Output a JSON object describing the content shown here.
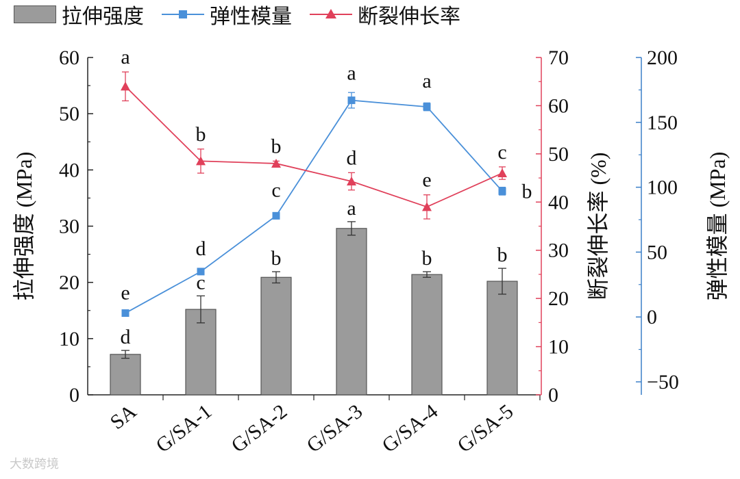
{
  "legend": {
    "bar_label": "拉伸强度",
    "modulus_label": "弹性模量",
    "elong_label": "断裂伸长率"
  },
  "watermark": "大数跨境",
  "colors": {
    "bar": "#9b9b9b",
    "bar_edge": "#555555",
    "modulus": "#4a90d9",
    "elongation": "#e0405a",
    "right_axis_red": "#e0405a",
    "right_axis_blue": "#3a7fc8"
  },
  "chart_data": {
    "type": "bar",
    "categories": [
      "SA",
      "G/SA-1",
      "G/SA-2",
      "G/SA-3",
      "G/SA-4",
      "G/SA-5"
    ],
    "series": [
      {
        "name": "拉伸强度",
        "type": "bar",
        "axis": "left",
        "values": [
          7.2,
          15.2,
          20.9,
          29.6,
          21.4,
          20.2
        ],
        "errors": [
          0.7,
          2.4,
          1.0,
          1.2,
          0.5,
          2.3
        ],
        "letters": [
          "d",
          "c",
          "b",
          "a",
          "b",
          "b"
        ]
      },
      {
        "name": "弹性模量",
        "type": "line",
        "axis": "right_blue",
        "marker": "square",
        "values": [
          3,
          35,
          78,
          167,
          162,
          97
        ],
        "errors": [
          1,
          2,
          1,
          6,
          3,
          3
        ],
        "letters": [
          "e",
          "d",
          "c",
          "a",
          "a",
          "b"
        ]
      },
      {
        "name": "断裂伸长率",
        "type": "line",
        "axis": "right_red",
        "marker": "triangle",
        "values": [
          64,
          48.5,
          48,
          44.3,
          39,
          46
        ],
        "errors": [
          3,
          2.5,
          0.5,
          1.8,
          2.5,
          1.3
        ],
        "letters": [
          "a",
          "b",
          "b",
          "d",
          "e",
          "c"
        ]
      }
    ],
    "axes": {
      "left": {
        "label": "拉伸强度 (MPa)",
        "ylim": [
          0,
          60
        ],
        "ticks": [
          0,
          10,
          20,
          30,
          40,
          50,
          60
        ]
      },
      "right_red": {
        "label": "断裂伸长率 (%)",
        "ylim": [
          0,
          70
        ],
        "ticks": [
          0,
          10,
          20,
          30,
          40,
          50,
          60,
          70
        ]
      },
      "right_blue": {
        "label": "弹性模量 (MPa)",
        "ylim": [
          -60,
          200
        ],
        "ticks": [
          -50,
          0,
          50,
          100,
          150,
          200
        ]
      }
    },
    "grid": false,
    "legend_position": "top"
  }
}
